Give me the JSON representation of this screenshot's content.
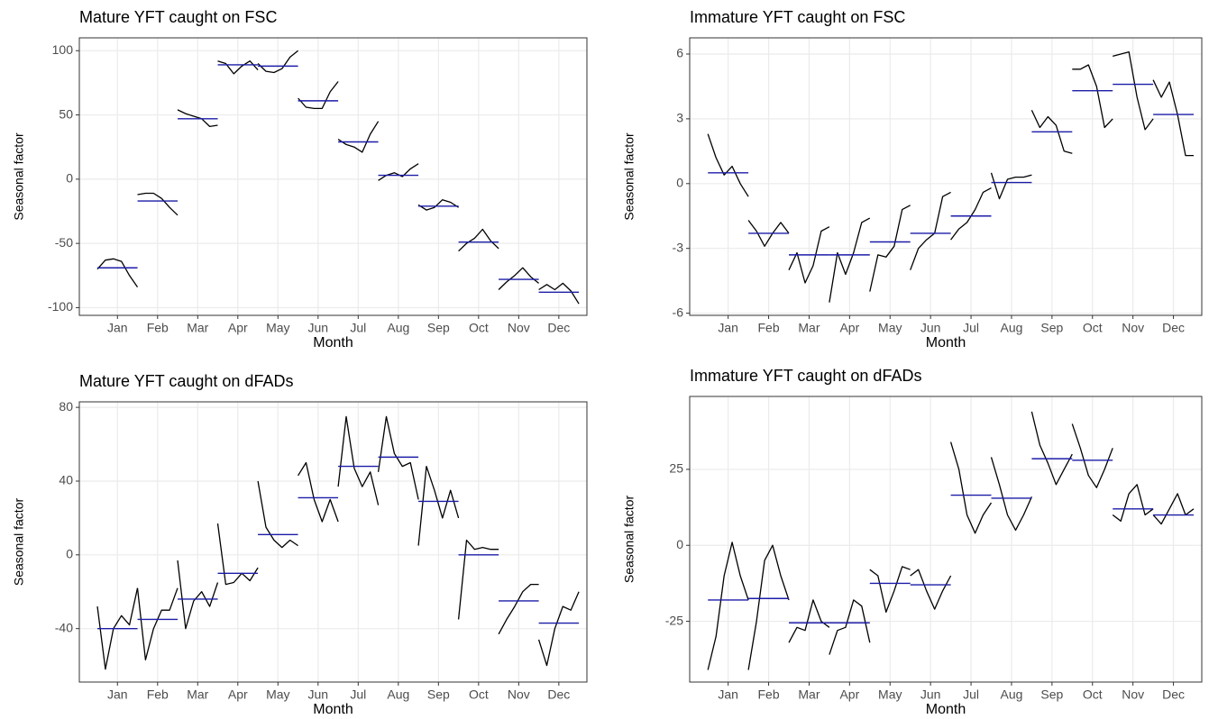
{
  "chart_data": [
    {
      "type": "seasonal",
      "title": "Mature YFT caught on FSC",
      "x_label": "Month",
      "y_label": "Seasonal factor",
      "categories": [
        "Jan",
        "Feb",
        "Mar",
        "Apr",
        "May",
        "Jun",
        "Jul",
        "Aug",
        "Sep",
        "Oct",
        "Nov",
        "Dec"
      ],
      "means": [
        -69,
        -17,
        47,
        89,
        88,
        61,
        29,
        3,
        -21,
        -49,
        -78,
        -88
      ],
      "subseries": [
        [
          -70,
          -63,
          -62,
          -64,
          -75,
          -84
        ],
        [
          -12,
          -11,
          -11,
          -15,
          -22,
          -28
        ],
        [
          54,
          51,
          49,
          47,
          41,
          42
        ],
        [
          92,
          90,
          82,
          88,
          92,
          85
        ],
        [
          90,
          84,
          83,
          86,
          95,
          100
        ],
        [
          63,
          56,
          55,
          55,
          68,
          76
        ],
        [
          31,
          27,
          25,
          21,
          35,
          45
        ],
        [
          -1,
          3,
          5,
          2,
          8,
          12
        ],
        [
          -20,
          -24,
          -22,
          -16,
          -18,
          -22
        ],
        [
          -56,
          -50,
          -46,
          -39,
          -48,
          -54
        ],
        [
          -86,
          -80,
          -75,
          -69,
          -76,
          -81
        ],
        [
          -86,
          -82,
          -86,
          -81,
          -87,
          -97
        ]
      ],
      "ylim": [
        -106,
        110
      ],
      "yticks": [
        -100,
        -50,
        0,
        50,
        100
      ],
      "grid": true,
      "line_color": "#000000",
      "mean_color": "#1c1ca8"
    },
    {
      "type": "seasonal",
      "title": "Immature YFT caught on FSC",
      "x_label": "Month",
      "y_label": "Seasonal factor",
      "categories": [
        "Jan",
        "Feb",
        "Mar",
        "Apr",
        "May",
        "Jun",
        "Jul",
        "Aug",
        "Sep",
        "Oct",
        "Nov",
        "Dec"
      ],
      "means": [
        0.5,
        -2.3,
        -3.3,
        -3.3,
        -2.7,
        -2.3,
        -1.5,
        0.05,
        2.4,
        4.3,
        4.6,
        3.2
      ],
      "subseries": [
        [
          2.3,
          1.2,
          0.4,
          0.8,
          0,
          -0.6
        ],
        [
          -1.7,
          -2.2,
          -2.9,
          -2.3,
          -1.8,
          -2.3
        ],
        [
          -4,
          -3.2,
          -4.6,
          -3.8,
          -2.2,
          -2
        ],
        [
          -5.5,
          -3.2,
          -4.2,
          -3.2,
          -1.8,
          -1.6
        ],
        [
          -5,
          -3.3,
          -3.4,
          -2.9,
          -1.2,
          -1
        ],
        [
          -4,
          -3,
          -2.6,
          -2.3,
          -0.6,
          -0.4
        ],
        [
          -2.6,
          -2.1,
          -1.8,
          -1.2,
          -0.4,
          -0.2
        ],
        [
          0.5,
          -0.7,
          0.2,
          0.3,
          0.3,
          0.4
        ],
        [
          3.4,
          2.6,
          3.1,
          2.7,
          1.5,
          1.4
        ],
        [
          5.3,
          5.3,
          5.5,
          4.5,
          2.6,
          3
        ],
        [
          5.9,
          6,
          6.1,
          4,
          2.5,
          3
        ],
        [
          4.8,
          4,
          4.7,
          3.2,
          1.3,
          1.3
        ]
      ],
      "ylim": [
        -6.1,
        6.75
      ],
      "yticks": [
        -6,
        -3,
        0,
        3,
        6
      ],
      "grid": true,
      "line_color": "#000000",
      "mean_color": "#1c1ca8"
    },
    {
      "type": "seasonal",
      "title": "Mature YFT caught on dFADs",
      "x_label": "Month",
      "y_label": "Seasonal factor",
      "categories": [
        "Jan",
        "Feb",
        "Mar",
        "Apr",
        "May",
        "Jun",
        "Jul",
        "Aug",
        "Sep",
        "Oct",
        "Nov",
        "Dec"
      ],
      "means": [
        -40,
        -35,
        -24,
        -10,
        11,
        31,
        48,
        53,
        29,
        0,
        -25,
        -37
      ],
      "subseries": [
        [
          -28,
          -62,
          -40,
          -33,
          -38,
          -18
        ],
        [
          -18,
          -57,
          -40,
          -30,
          -30,
          -18
        ],
        [
          -3,
          -40,
          -25,
          -20,
          -28,
          -15
        ],
        [
          17,
          -16,
          -15,
          -10,
          -14,
          -7
        ],
        [
          40,
          15,
          8,
          4,
          8,
          5
        ],
        [
          43,
          50,
          30,
          18,
          30,
          18
        ],
        [
          37,
          75,
          47,
          37,
          45,
          27
        ],
        [
          45,
          75,
          55,
          48,
          50,
          30
        ],
        [
          5,
          48,
          35,
          20,
          35,
          20
        ],
        [
          -35,
          8,
          3,
          4,
          3,
          3
        ],
        [
          -43,
          -35,
          -28,
          -20,
          -16,
          -16
        ],
        [
          -46,
          -60,
          -40,
          -28,
          -30,
          -20
        ]
      ],
      "ylim": [
        -69,
        83
      ],
      "yticks": [
        -40,
        0,
        40,
        80
      ],
      "grid": true,
      "line_color": "#000000",
      "mean_color": "#1c1ca8"
    },
    {
      "type": "seasonal",
      "title": "Immature YFT caught on dFADs",
      "x_label": "Month",
      "y_label": "Seasonal factor",
      "categories": [
        "Jan",
        "Feb",
        "Mar",
        "Apr",
        "May",
        "Jun",
        "Jul",
        "Aug",
        "Sep",
        "Oct",
        "Nov",
        "Dec"
      ],
      "means": [
        -18,
        -17.5,
        -25.5,
        -25.5,
        -12.5,
        -13,
        16.5,
        15.5,
        28.5,
        28,
        12,
        10
      ],
      "subseries": [
        [
          -41,
          -30,
          -10,
          1,
          -10,
          -18
        ],
        [
          -41,
          -25,
          -5,
          0,
          -10,
          -18
        ],
        [
          -32,
          -27,
          -28,
          -18,
          -25,
          -27
        ],
        [
          -36,
          -28,
          -27,
          -18,
          -20,
          -32
        ],
        [
          -8,
          -10,
          -22,
          -15,
          -7,
          -8
        ],
        [
          -10,
          -8,
          -15,
          -21,
          -15,
          -10
        ],
        [
          34,
          25,
          10,
          4,
          10,
          14
        ],
        [
          29,
          20,
          10,
          5,
          10,
          16
        ],
        [
          44,
          33,
          27,
          20,
          25,
          30
        ],
        [
          40,
          32,
          23,
          19,
          25,
          32
        ],
        [
          10,
          8,
          17,
          20,
          10,
          12
        ],
        [
          10,
          7,
          12,
          17,
          10,
          12
        ]
      ],
      "ylim": [
        -45,
        49
      ],
      "yticks": [
        -25,
        0,
        25
      ],
      "grid": true,
      "line_color": "#000000",
      "mean_color": "#1c1ca8"
    }
  ]
}
